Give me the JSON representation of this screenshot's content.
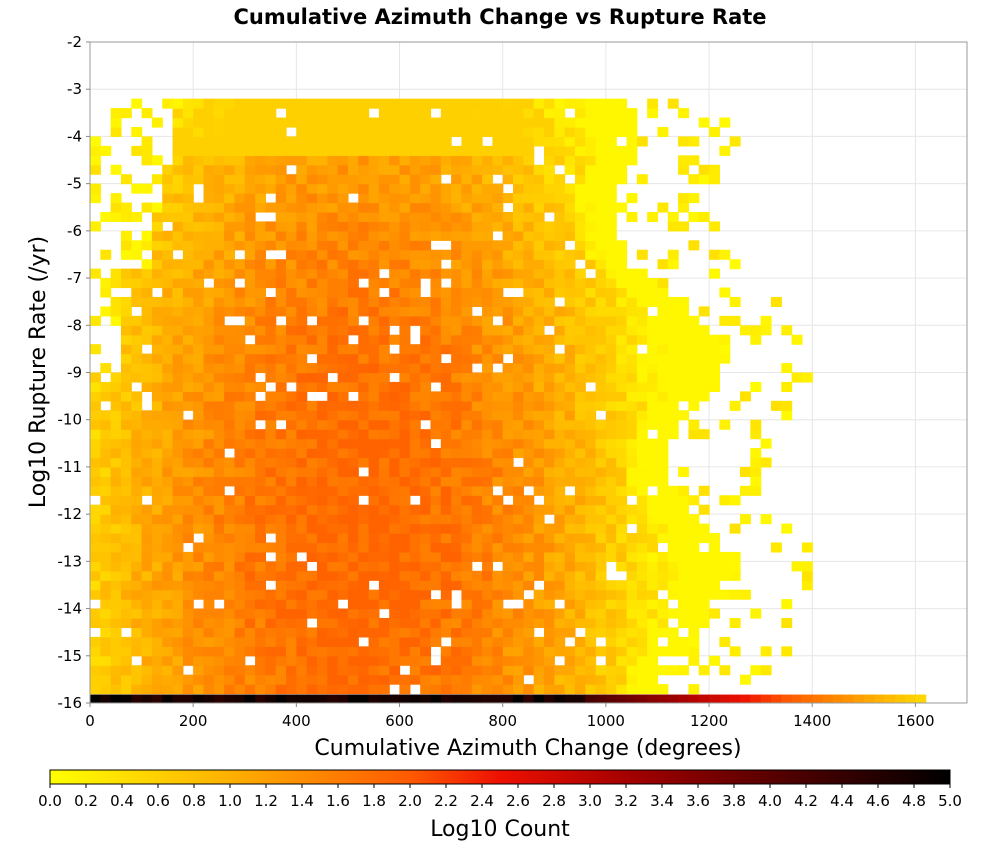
{
  "chart_data": {
    "type": "heatmap",
    "title": "Cumulative Azimuth Change vs Rupture Rate",
    "xlabel": "Cumulative Azimuth Change (degrees)",
    "ylabel": "Log10 Rupture Rate (/yr)",
    "xlim": [
      0,
      1700
    ],
    "ylim": [
      -16,
      -2
    ],
    "x_ticks": [
      "0",
      "200",
      "400",
      "600",
      "800",
      "1000",
      "1200",
      "1400",
      "1600"
    ],
    "y_ticks": [
      "-2",
      "-3",
      "-4",
      "-5",
      "-6",
      "-7",
      "-8",
      "-9",
      "-10",
      "-11",
      "-12",
      "-13",
      "-14",
      "-15",
      "-16"
    ],
    "grid": true,
    "bin_width_x": 20,
    "bin_width_y": 0.2,
    "cells_note_regions": [
      {
        "region": "x 0–1200, y -16 to -3.4",
        "log10_count": "0.4–1.8, peak ~1.8 near x 400–700, y -13 to -15"
      },
      {
        "region": "x 0–1000, y -16",
        "log10_count": "~4.6–5.0"
      },
      {
        "region": "x 1000–1620, y -16",
        "log10_count": "decreasing from ~4.0 to ~0.4"
      }
    ],
    "colorbar": {
      "label": "Log10 Count",
      "min": 0.0,
      "max": 5.0,
      "ticks": [
        "0.0",
        "0.2",
        "0.4",
        "0.6",
        "0.8",
        "1.0",
        "1.2",
        "1.4",
        "1.6",
        "1.8",
        "2.0",
        "2.2",
        "2.4",
        "2.6",
        "2.8",
        "3.0",
        "3.2",
        "3.4",
        "3.6",
        "3.8",
        "4.0",
        "4.2",
        "4.4",
        "4.6",
        "4.8",
        "5.0"
      ],
      "colors": [
        "#ffff00",
        "#ff9f00",
        "#ff3000",
        "#cc0000",
        "#7a0000",
        "#000000"
      ]
    }
  }
}
